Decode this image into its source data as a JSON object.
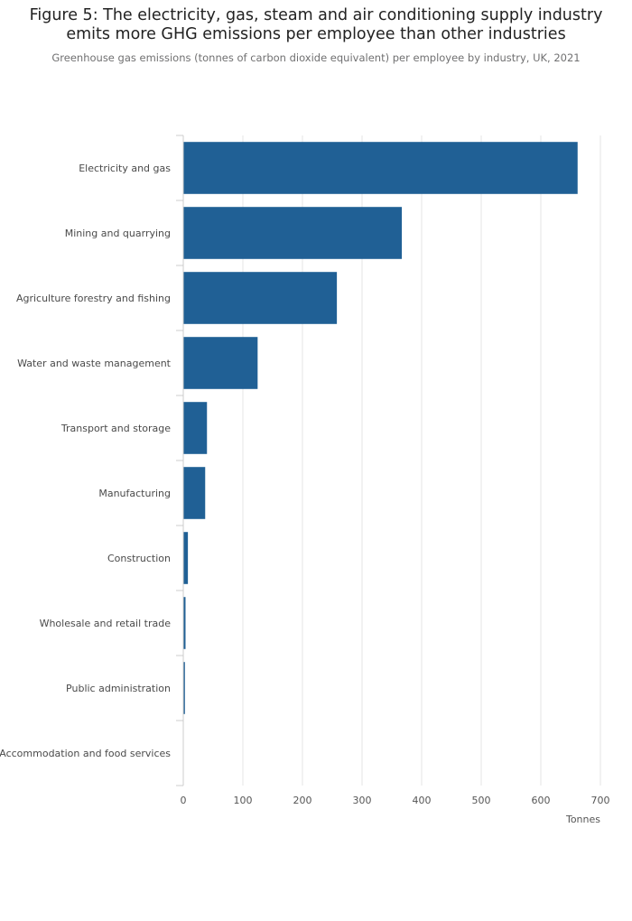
{
  "header": {
    "title_line1": "Figure 5: The electricity, gas, steam and air conditioning supply industry",
    "title_line2": "emits more GHG emissions per employee than other industries",
    "subtitle": "Greenhouse gas emissions (tonnes of carbon dioxide equivalent) per employee by industry, UK, 2021"
  },
  "chart_data": {
    "type": "bar",
    "orientation": "horizontal",
    "categories": [
      "Electricity and gas",
      "Mining and quarrying",
      "Agriculture forestry and fishing",
      "Water and waste management",
      "Transport and storage",
      "Manufacturing",
      "Construction",
      "Wholesale and retail trade",
      "Public administration",
      "Accommodation and food services"
    ],
    "values": [
      661,
      366,
      257,
      124,
      39,
      36,
      7,
      3,
      2,
      0
    ],
    "xlabel": "Tonnes",
    "ylabel": "",
    "xlim": [
      0,
      700
    ],
    "xticks": [
      "0",
      "100",
      "200",
      "300",
      "400",
      "500",
      "600",
      "700"
    ],
    "grid": true,
    "bar_color": "#206095"
  }
}
